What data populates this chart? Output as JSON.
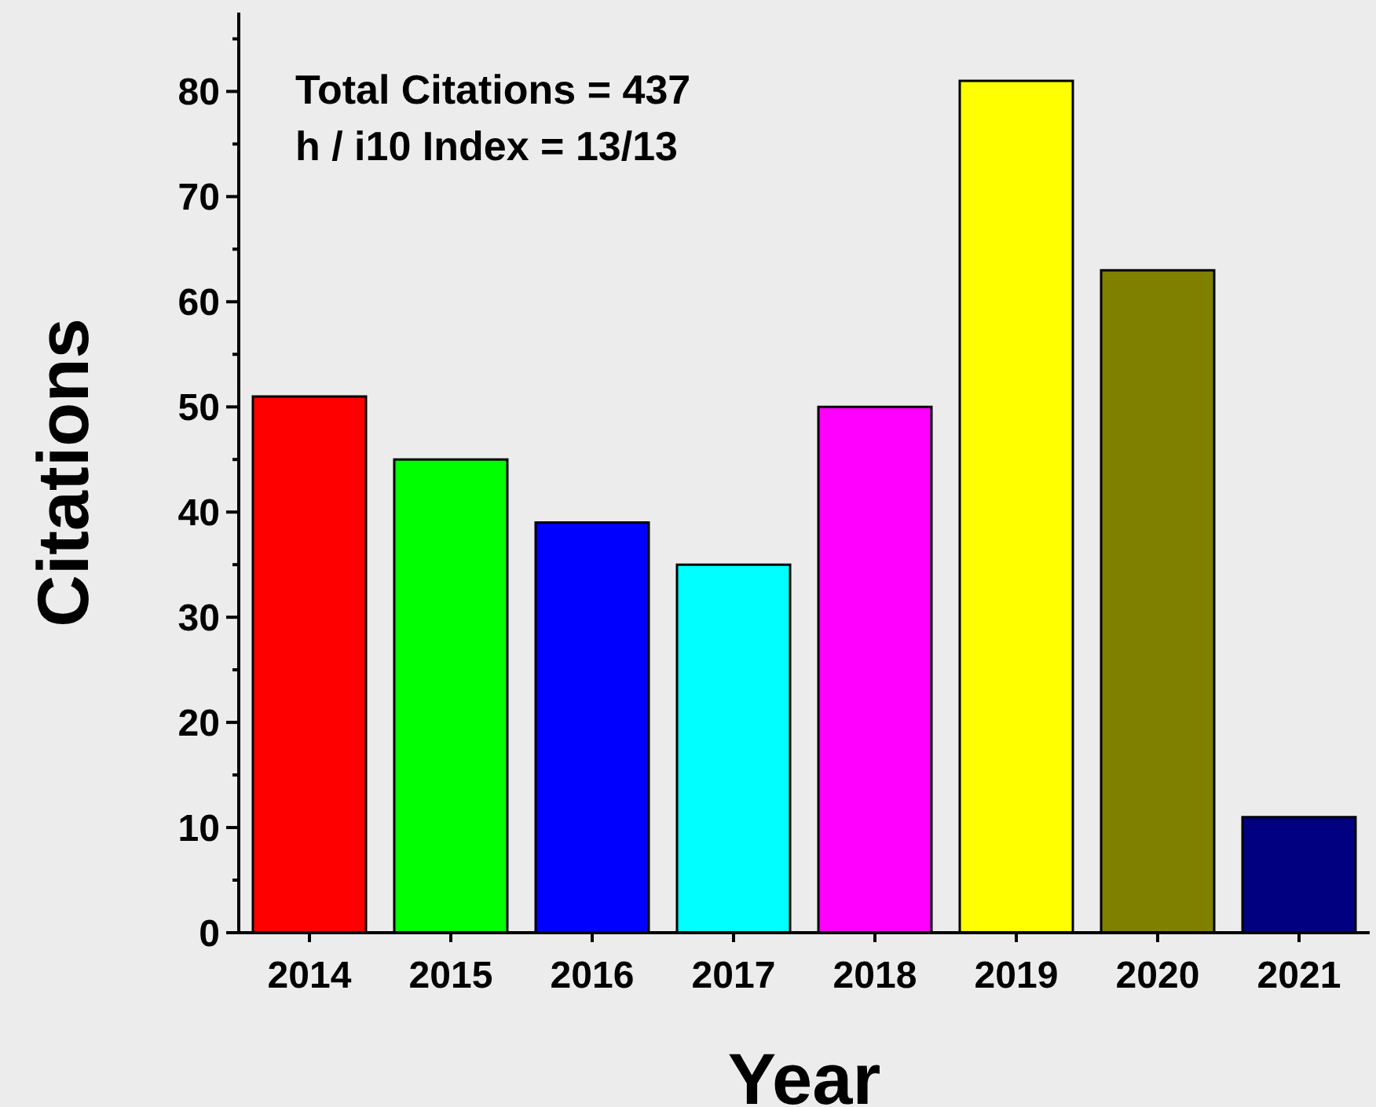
{
  "chart_data": {
    "type": "bar",
    "xlabel": "Year",
    "ylabel": "Citations",
    "categories": [
      "2014",
      "2015",
      "2016",
      "2017",
      "2018",
      "2019",
      "2020",
      "2021"
    ],
    "values": [
      51,
      45,
      39,
      35,
      50,
      81,
      63,
      11
    ],
    "colors": [
      "#ff0000",
      "#00ff00",
      "#0000ff",
      "#00ffff",
      "#ff00ff",
      "#ffff00",
      "#808000",
      "#000080"
    ],
    "ylim": [
      0,
      87.5
    ],
    "yticks": [
      0,
      {
        "value": 5,
        "label": null
      },
      10,
      {
        "value": 15,
        "label": null
      },
      20,
      {
        "value": 25,
        "label": null
      },
      30,
      {
        "value": 35,
        "label": null
      },
      40,
      {
        "value": 45,
        "label": null
      },
      50,
      {
        "value": 55,
        "label": null
      },
      60,
      {
        "value": 65,
        "label": null
      },
      70,
      {
        "value": 75,
        "label": null
      },
      80,
      {
        "value": 85,
        "label": null
      }
    ],
    "annotations": [
      "Total Citations = 437",
      "h / i10 Index = 13/13"
    ],
    "grid": false,
    "legend": false
  }
}
